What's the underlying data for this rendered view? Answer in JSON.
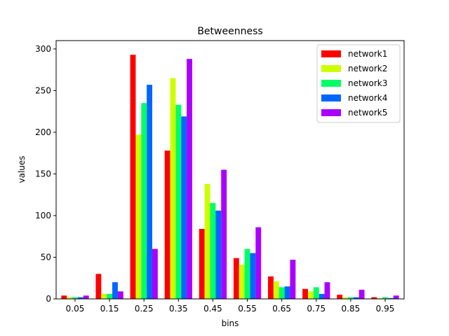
{
  "chart_data": {
    "type": "bar",
    "title": "Betweenness",
    "xlabel": "bins",
    "ylabel": "values",
    "categories": [
      "0.05",
      "0.15",
      "0.25",
      "0.35",
      "0.45",
      "0.55",
      "0.65",
      "0.75",
      "0.85",
      "0.95"
    ],
    "ylim": [
      0,
      310
    ],
    "yticks": [
      0,
      50,
      100,
      150,
      200,
      250,
      300
    ],
    "grid": false,
    "legend_position": "top-right",
    "series": [
      {
        "name": "network1",
        "color": "#ff0000",
        "values": [
          4,
          30,
          293,
          178,
          84,
          49,
          27,
          12,
          5,
          2
        ]
      },
      {
        "name": "network2",
        "color": "#ccff00",
        "values": [
          2,
          6,
          197,
          265,
          138,
          41,
          21,
          9,
          2,
          1
        ]
      },
      {
        "name": "network3",
        "color": "#00ff66",
        "values": [
          2,
          6,
          235,
          233,
          115,
          60,
          14,
          14,
          2,
          2
        ]
      },
      {
        "name": "network4",
        "color": "#0066ff",
        "values": [
          2,
          20,
          257,
          219,
          106,
          55,
          15,
          6,
          2,
          1
        ]
      },
      {
        "name": "network5",
        "color": "#aa00ff",
        "values": [
          4,
          9,
          60,
          288,
          155,
          86,
          47,
          20,
          11,
          4
        ]
      }
    ]
  }
}
